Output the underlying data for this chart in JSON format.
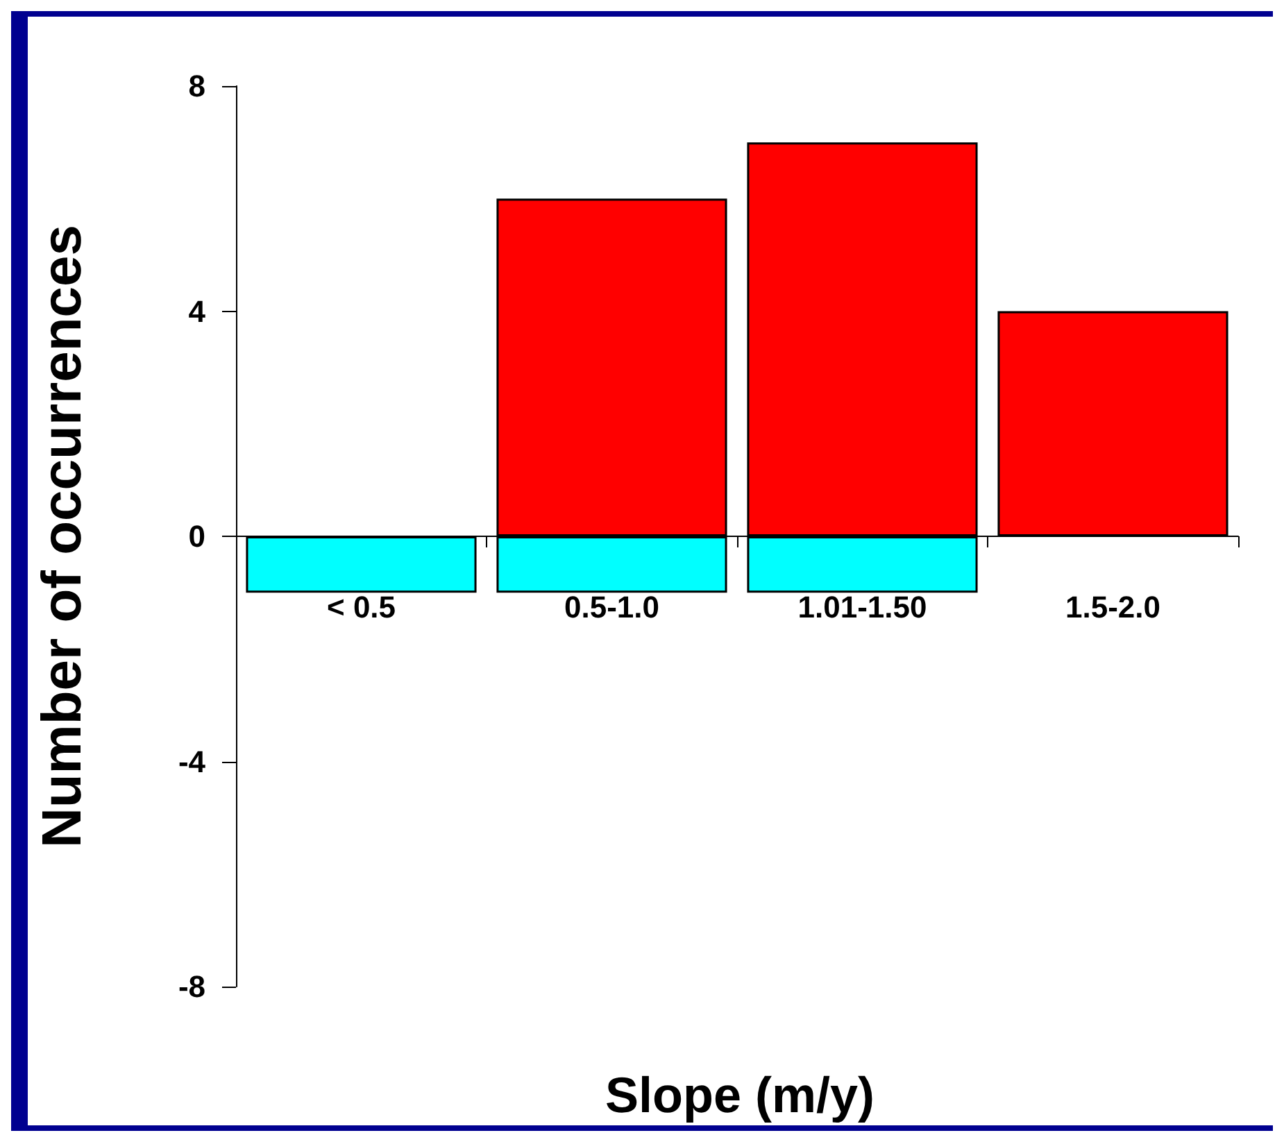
{
  "chart_data": {
    "type": "bar",
    "xlabel": "Slope (m/y)",
    "ylabel": "Number of occurrences",
    "stacked": true,
    "categories": [
      "< 0.5",
      "0.5-1.0",
      "1.01-1.50",
      "1.5-2.0"
    ],
    "series": [
      {
        "color": "#ff0000",
        "values": [
          null,
          6,
          7,
          4
        ]
      },
      {
        "color": "#00ffff",
        "values": [
          -1,
          -1,
          -1,
          null
        ]
      }
    ],
    "ylim": [
      -8,
      8
    ],
    "yticks": [
      -8,
      -4,
      0,
      4,
      8
    ],
    "grid": false
  }
}
